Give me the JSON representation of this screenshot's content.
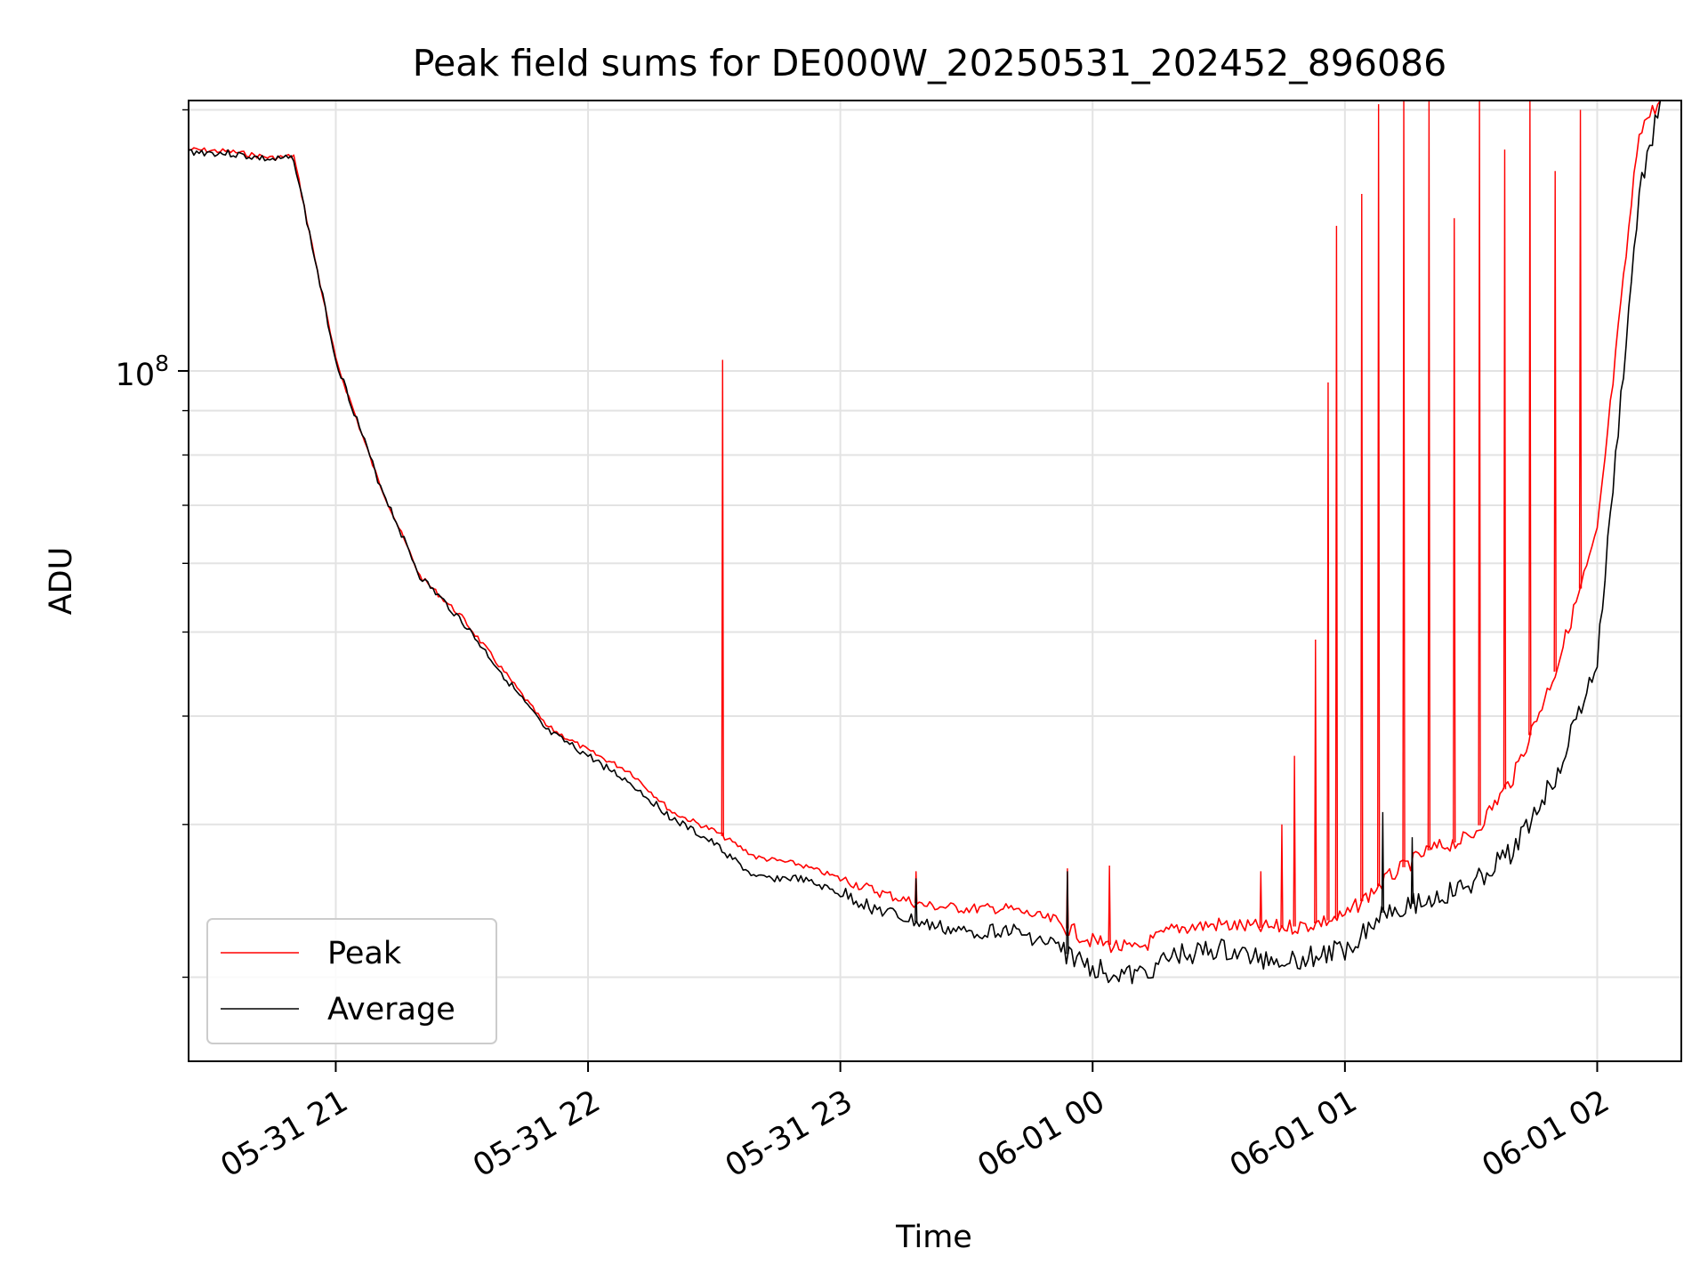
{
  "chart_data": {
    "type": "line",
    "title": "Peak field sums for DE000W_20250531_202452_896086",
    "xlabel": "Time",
    "ylabel": "ADU",
    "y_scale": "log",
    "y_tick_label": {
      "base": "10",
      "exp": "8",
      "value": 100000000
    },
    "ylim": [
      16000000,
      205000000
    ],
    "xlim": [
      "2025-05-31 20:25",
      "2025-06-01 02:20"
    ],
    "x_ticks": [
      {
        "label": "05-31 21",
        "time": "2025-05-31 21:00"
      },
      {
        "label": "05-31 22",
        "time": "2025-05-31 22:00"
      },
      {
        "label": "05-31 23",
        "time": "2025-05-31 23:00"
      },
      {
        "label": "06-01 00",
        "time": "2025-06-01 00:00"
      },
      {
        "label": "06-01 01",
        "time": "2025-06-01 01:00"
      },
      {
        "label": "06-01 02",
        "time": "2025-06-01 02:00"
      }
    ],
    "grid": true,
    "legend": {
      "placement": "lower-left",
      "entries": [
        "Peak",
        "Average"
      ]
    },
    "series": [
      {
        "name": "Peak",
        "color": "#ff0000",
        "points": [
          [
            "2025-05-31 20:25",
            180000000
          ],
          [
            "2025-05-31 20:35",
            179000000
          ],
          [
            "2025-05-31 20:45",
            176000000
          ],
          [
            "2025-05-31 20:50",
            177000000
          ],
          [
            "2025-05-31 21:00",
            103000000
          ],
          [
            "2025-05-31 21:10",
            75000000
          ],
          [
            "2025-05-31 21:20",
            58000000
          ],
          [
            "2025-05-31 21:30",
            52000000
          ],
          [
            "2025-05-31 21:40",
            45000000
          ],
          [
            "2025-05-31 21:50",
            39000000
          ],
          [
            "2025-05-31 22:00",
            36500000
          ],
          [
            "2025-05-31 22:10",
            34500000
          ],
          [
            "2025-05-31 22:20",
            31000000
          ],
          [
            "2025-05-31 22:30",
            29500000
          ],
          [
            "2025-05-31 22:40",
            27500000
          ],
          [
            "2025-05-31 22:50",
            27000000
          ],
          [
            "2025-05-31 23:00",
            26000000
          ],
          [
            "2025-05-31 23:10",
            25000000
          ],
          [
            "2025-05-31 23:20",
            24200000
          ],
          [
            "2025-05-31 23:30",
            24000000
          ],
          [
            "2025-05-31 23:40",
            24000000
          ],
          [
            "2025-05-31 23:50",
            23300000
          ],
          [
            "2025-06-01 00:00",
            22000000
          ],
          [
            "2025-06-01 00:10",
            21500000
          ],
          [
            "2025-06-01 00:20",
            22800000
          ],
          [
            "2025-06-01 00:30",
            23000000
          ],
          [
            "2025-06-01 00:40",
            22800000
          ],
          [
            "2025-06-01 00:50",
            22900000
          ],
          [
            "2025-06-01 01:00",
            23500000
          ],
          [
            "2025-06-01 01:10",
            26000000
          ],
          [
            "2025-06-01 01:20",
            28000000
          ],
          [
            "2025-06-01 01:30",
            29000000
          ],
          [
            "2025-06-01 01:40",
            34000000
          ],
          [
            "2025-06-01 01:50",
            45000000
          ],
          [
            "2025-06-01 02:00",
            65000000
          ],
          [
            "2025-06-01 02:10",
            190000000
          ],
          [
            "2025-06-01 02:15",
            205000000
          ]
        ],
        "spikes": [
          [
            "2025-05-31 22:32",
            103000000
          ],
          [
            "2025-05-31 23:18",
            26500000
          ],
          [
            "2025-05-31 23:54",
            26700000
          ],
          [
            "2025-06-01 00:04",
            26900000
          ],
          [
            "2025-06-01 00:40",
            26500000
          ],
          [
            "2025-06-01 00:45",
            30000000
          ],
          [
            "2025-06-01 00:48",
            36000000
          ],
          [
            "2025-06-01 00:53",
            49000000
          ],
          [
            "2025-06-01 00:56",
            97000000
          ],
          [
            "2025-06-01 00:58",
            147000000
          ],
          [
            "2025-06-01 01:04",
            160000000
          ],
          [
            "2025-06-01 01:08",
            203000000
          ],
          [
            "2025-06-01 01:14",
            205000000
          ],
          [
            "2025-06-01 01:20",
            205000000
          ],
          [
            "2025-06-01 01:26",
            150000000
          ],
          [
            "2025-06-01 01:32",
            205000000
          ],
          [
            "2025-06-01 01:38",
            180000000
          ],
          [
            "2025-06-01 01:44",
            205000000
          ],
          [
            "2025-06-01 01:50",
            170000000
          ],
          [
            "2025-06-01 01:56",
            200000000
          ]
        ]
      },
      {
        "name": "Average",
        "color": "#000000",
        "points": [
          [
            "2025-05-31 20:25",
            179000000
          ],
          [
            "2025-05-31 20:35",
            178000000
          ],
          [
            "2025-05-31 20:45",
            175000000
          ],
          [
            "2025-05-31 20:50",
            176000000
          ],
          [
            "2025-05-31 21:00",
            103000000
          ],
          [
            "2025-05-31 21:10",
            75000000
          ],
          [
            "2025-05-31 21:20",
            58000000
          ],
          [
            "2025-05-31 21:30",
            51500000
          ],
          [
            "2025-05-31 21:40",
            44500000
          ],
          [
            "2025-05-31 21:50",
            38500000
          ],
          [
            "2025-05-31 22:00",
            36000000
          ],
          [
            "2025-05-31 22:10",
            33500000
          ],
          [
            "2025-05-31 22:20",
            30500000
          ],
          [
            "2025-05-31 22:30",
            28500000
          ],
          [
            "2025-05-31 22:40",
            26000000
          ],
          [
            "2025-05-31 22:50",
            26000000
          ],
          [
            "2025-05-31 23:00",
            25000000
          ],
          [
            "2025-05-31 23:10",
            23800000
          ],
          [
            "2025-05-31 23:20",
            23000000
          ],
          [
            "2025-05-31 23:30",
            22500000
          ],
          [
            "2025-05-31 23:40",
            22700000
          ],
          [
            "2025-05-31 23:50",
            21800000
          ],
          [
            "2025-06-01 00:00",
            20500000
          ],
          [
            "2025-06-01 00:10",
            20000000
          ],
          [
            "2025-06-01 00:20",
            21200000
          ],
          [
            "2025-06-01 00:30",
            21500000
          ],
          [
            "2025-06-01 00:40",
            21000000
          ],
          [
            "2025-06-01 00:50",
            21000000
          ],
          [
            "2025-06-01 01:00",
            21500000
          ],
          [
            "2025-06-01 01:10",
            24000000
          ],
          [
            "2025-06-01 01:20",
            24500000
          ],
          [
            "2025-06-01 01:30",
            25500000
          ],
          [
            "2025-06-01 01:40",
            28000000
          ],
          [
            "2025-06-01 01:50",
            34000000
          ],
          [
            "2025-06-01 02:00",
            46000000
          ],
          [
            "2025-06-01 02:10",
            160000000
          ],
          [
            "2025-06-01 02:15",
            205000000
          ]
        ],
        "spikes": [
          [
            "2025-05-31 23:18",
            26000000
          ],
          [
            "2025-05-31 23:54",
            26500000
          ],
          [
            "2025-06-01 01:09",
            31000000
          ],
          [
            "2025-06-01 01:16",
            29000000
          ]
        ]
      }
    ]
  }
}
